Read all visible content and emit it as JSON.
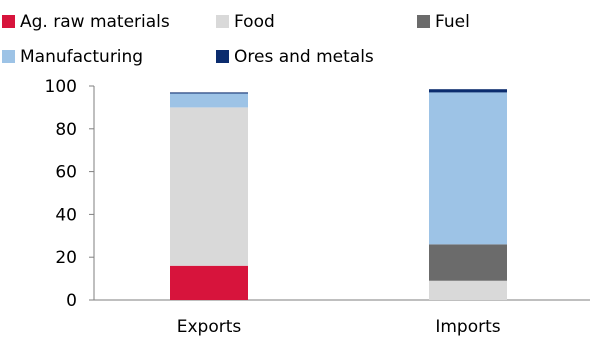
{
  "chart_data": {
    "type": "bar",
    "stacked": true,
    "categories": [
      "Exports",
      "Imports"
    ],
    "series": [
      {
        "name": "Ag. raw materials",
        "color": "#d7143c",
        "values": [
          16,
          0
        ]
      },
      {
        "name": "Food",
        "color": "#d9d9d9",
        "values": [
          74,
          9
        ]
      },
      {
        "name": "Fuel",
        "color": "#6b6b6b",
        "values": [
          0,
          17
        ]
      },
      {
        "name": "Manufacturing",
        "color": "#9dc3e6",
        "values": [
          6.5,
          71
        ]
      },
      {
        "name": "Ores and metals",
        "color": "#0b2c6e",
        "values": [
          0.5,
          1.5
        ]
      }
    ],
    "ylim": [
      0,
      100
    ],
    "yticks": [
      0,
      20,
      40,
      60,
      80,
      100
    ],
    "legend_position": "top",
    "grid": false
  }
}
